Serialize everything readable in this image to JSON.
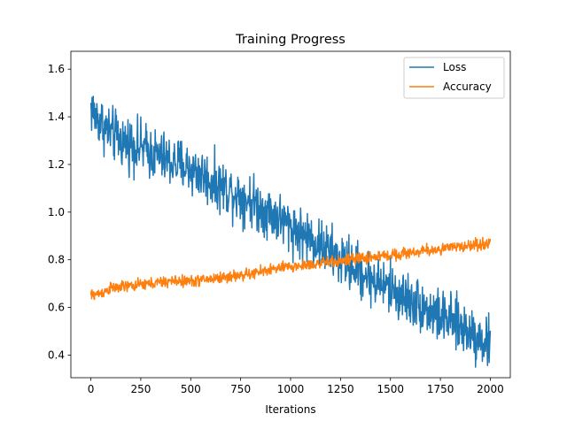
{
  "chart_data": {
    "type": "line",
    "title": "Training Progress",
    "xlabel": "Iterations",
    "ylabel": "",
    "xlim": [
      -100,
      2100
    ],
    "ylim": [
      0.305,
      1.675
    ],
    "xticks": [
      0,
      250,
      500,
      750,
      1000,
      1250,
      1500,
      1750,
      2000
    ],
    "yticks": [
      0.4,
      0.6,
      0.8,
      1.0,
      1.2,
      1.4,
      1.6
    ],
    "xtick_labels": [
      "0",
      "250",
      "500",
      "750",
      "1000",
      "1250",
      "1500",
      "1750",
      "2000"
    ],
    "ytick_labels": [
      "0.4",
      "0.6",
      "0.8",
      "1.0",
      "1.2",
      "1.4",
      "1.6"
    ],
    "legend_position": "upper right",
    "grid": false,
    "series": [
      {
        "name": "Loss",
        "color": "#1f77b4",
        "x": [
          0,
          25,
          50,
          75,
          100,
          150,
          200,
          250,
          300,
          350,
          400,
          450,
          500,
          550,
          600,
          650,
          700,
          750,
          800,
          850,
          900,
          950,
          1000,
          1050,
          1100,
          1150,
          1200,
          1250,
          1300,
          1350,
          1400,
          1450,
          1500,
          1550,
          1600,
          1650,
          1700,
          1750,
          1800,
          1850,
          1900,
          1950,
          2000
        ],
        "values": [
          1.44,
          1.4,
          1.38,
          1.35,
          1.33,
          1.3,
          1.29,
          1.27,
          1.25,
          1.23,
          1.21,
          1.2,
          1.18,
          1.16,
          1.13,
          1.11,
          1.09,
          1.07,
          1.05,
          1.02,
          1.0,
          0.97,
          0.94,
          0.91,
          0.89,
          0.86,
          0.83,
          0.8,
          0.78,
          0.75,
          0.72,
          0.7,
          0.68,
          0.65,
          0.63,
          0.61,
          0.58,
          0.56,
          0.54,
          0.52,
          0.5,
          0.47,
          0.44
        ],
        "noise": 0.055
      },
      {
        "name": "Accuracy",
        "color": "#ff7f0e",
        "x": [
          0,
          50,
          100,
          200,
          300,
          400,
          500,
          600,
          700,
          800,
          900,
          1000,
          1100,
          1200,
          1300,
          1400,
          1500,
          1600,
          1700,
          1800,
          1900,
          2000
        ],
        "values": [
          0.65,
          0.66,
          0.68,
          0.69,
          0.7,
          0.71,
          0.71,
          0.72,
          0.73,
          0.74,
          0.76,
          0.77,
          0.78,
          0.79,
          0.8,
          0.81,
          0.82,
          0.83,
          0.84,
          0.85,
          0.86,
          0.87
        ],
        "noise": 0.012
      }
    ]
  }
}
